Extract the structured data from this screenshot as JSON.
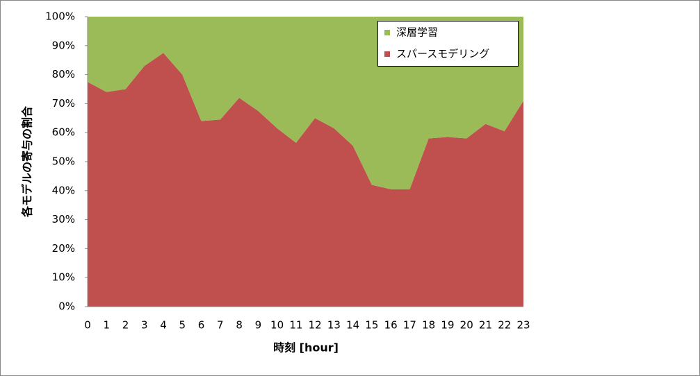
{
  "chart_data": {
    "type": "stacked-area",
    "x_label": "時刻 [hour]",
    "y_label": "各モデルの寄与の割合",
    "categories": [
      "0",
      "1",
      "2",
      "3",
      "4",
      "5",
      "6",
      "7",
      "8",
      "9",
      "10",
      "11",
      "12",
      "13",
      "14",
      "15",
      "16",
      "17",
      "18",
      "19",
      "20",
      "21",
      "22",
      "23"
    ],
    "series": [
      {
        "name": "深層学習",
        "color": "#9bbb59",
        "values": [
          22.5,
          26,
          25,
          17,
          12.5,
          20,
          36,
          35.5,
          28,
          32.5,
          38.5,
          43.5,
          35,
          38.5,
          44.5,
          58,
          59.5,
          59.5,
          42,
          41.5,
          42,
          37,
          39.5,
          29
        ]
      },
      {
        "name": "スパースモデリング",
        "color": "#c0504d",
        "values": [
          77.5,
          74,
          75,
          83,
          87.5,
          80,
          64,
          64.5,
          72,
          67.5,
          61.5,
          56.5,
          65,
          61.5,
          55.5,
          42,
          40.5,
          40.5,
          58,
          58.5,
          58,
          63,
          60.5,
          71
        ]
      }
    ],
    "ylim": [
      0,
      100
    ],
    "yticks": [
      {
        "value": 0,
        "label": "0%"
      },
      {
        "value": 10,
        "label": "10%"
      },
      {
        "value": 20,
        "label": "20%"
      },
      {
        "value": 30,
        "label": "30%"
      },
      {
        "value": 40,
        "label": "40%"
      },
      {
        "value": 50,
        "label": "50%"
      },
      {
        "value": 60,
        "label": "60%"
      },
      {
        "value": 70,
        "label": "70%"
      },
      {
        "value": 80,
        "label": "80%"
      },
      {
        "value": 90,
        "label": "90%"
      },
      {
        "value": 100,
        "label": "100%"
      }
    ],
    "legend": "top-right"
  }
}
